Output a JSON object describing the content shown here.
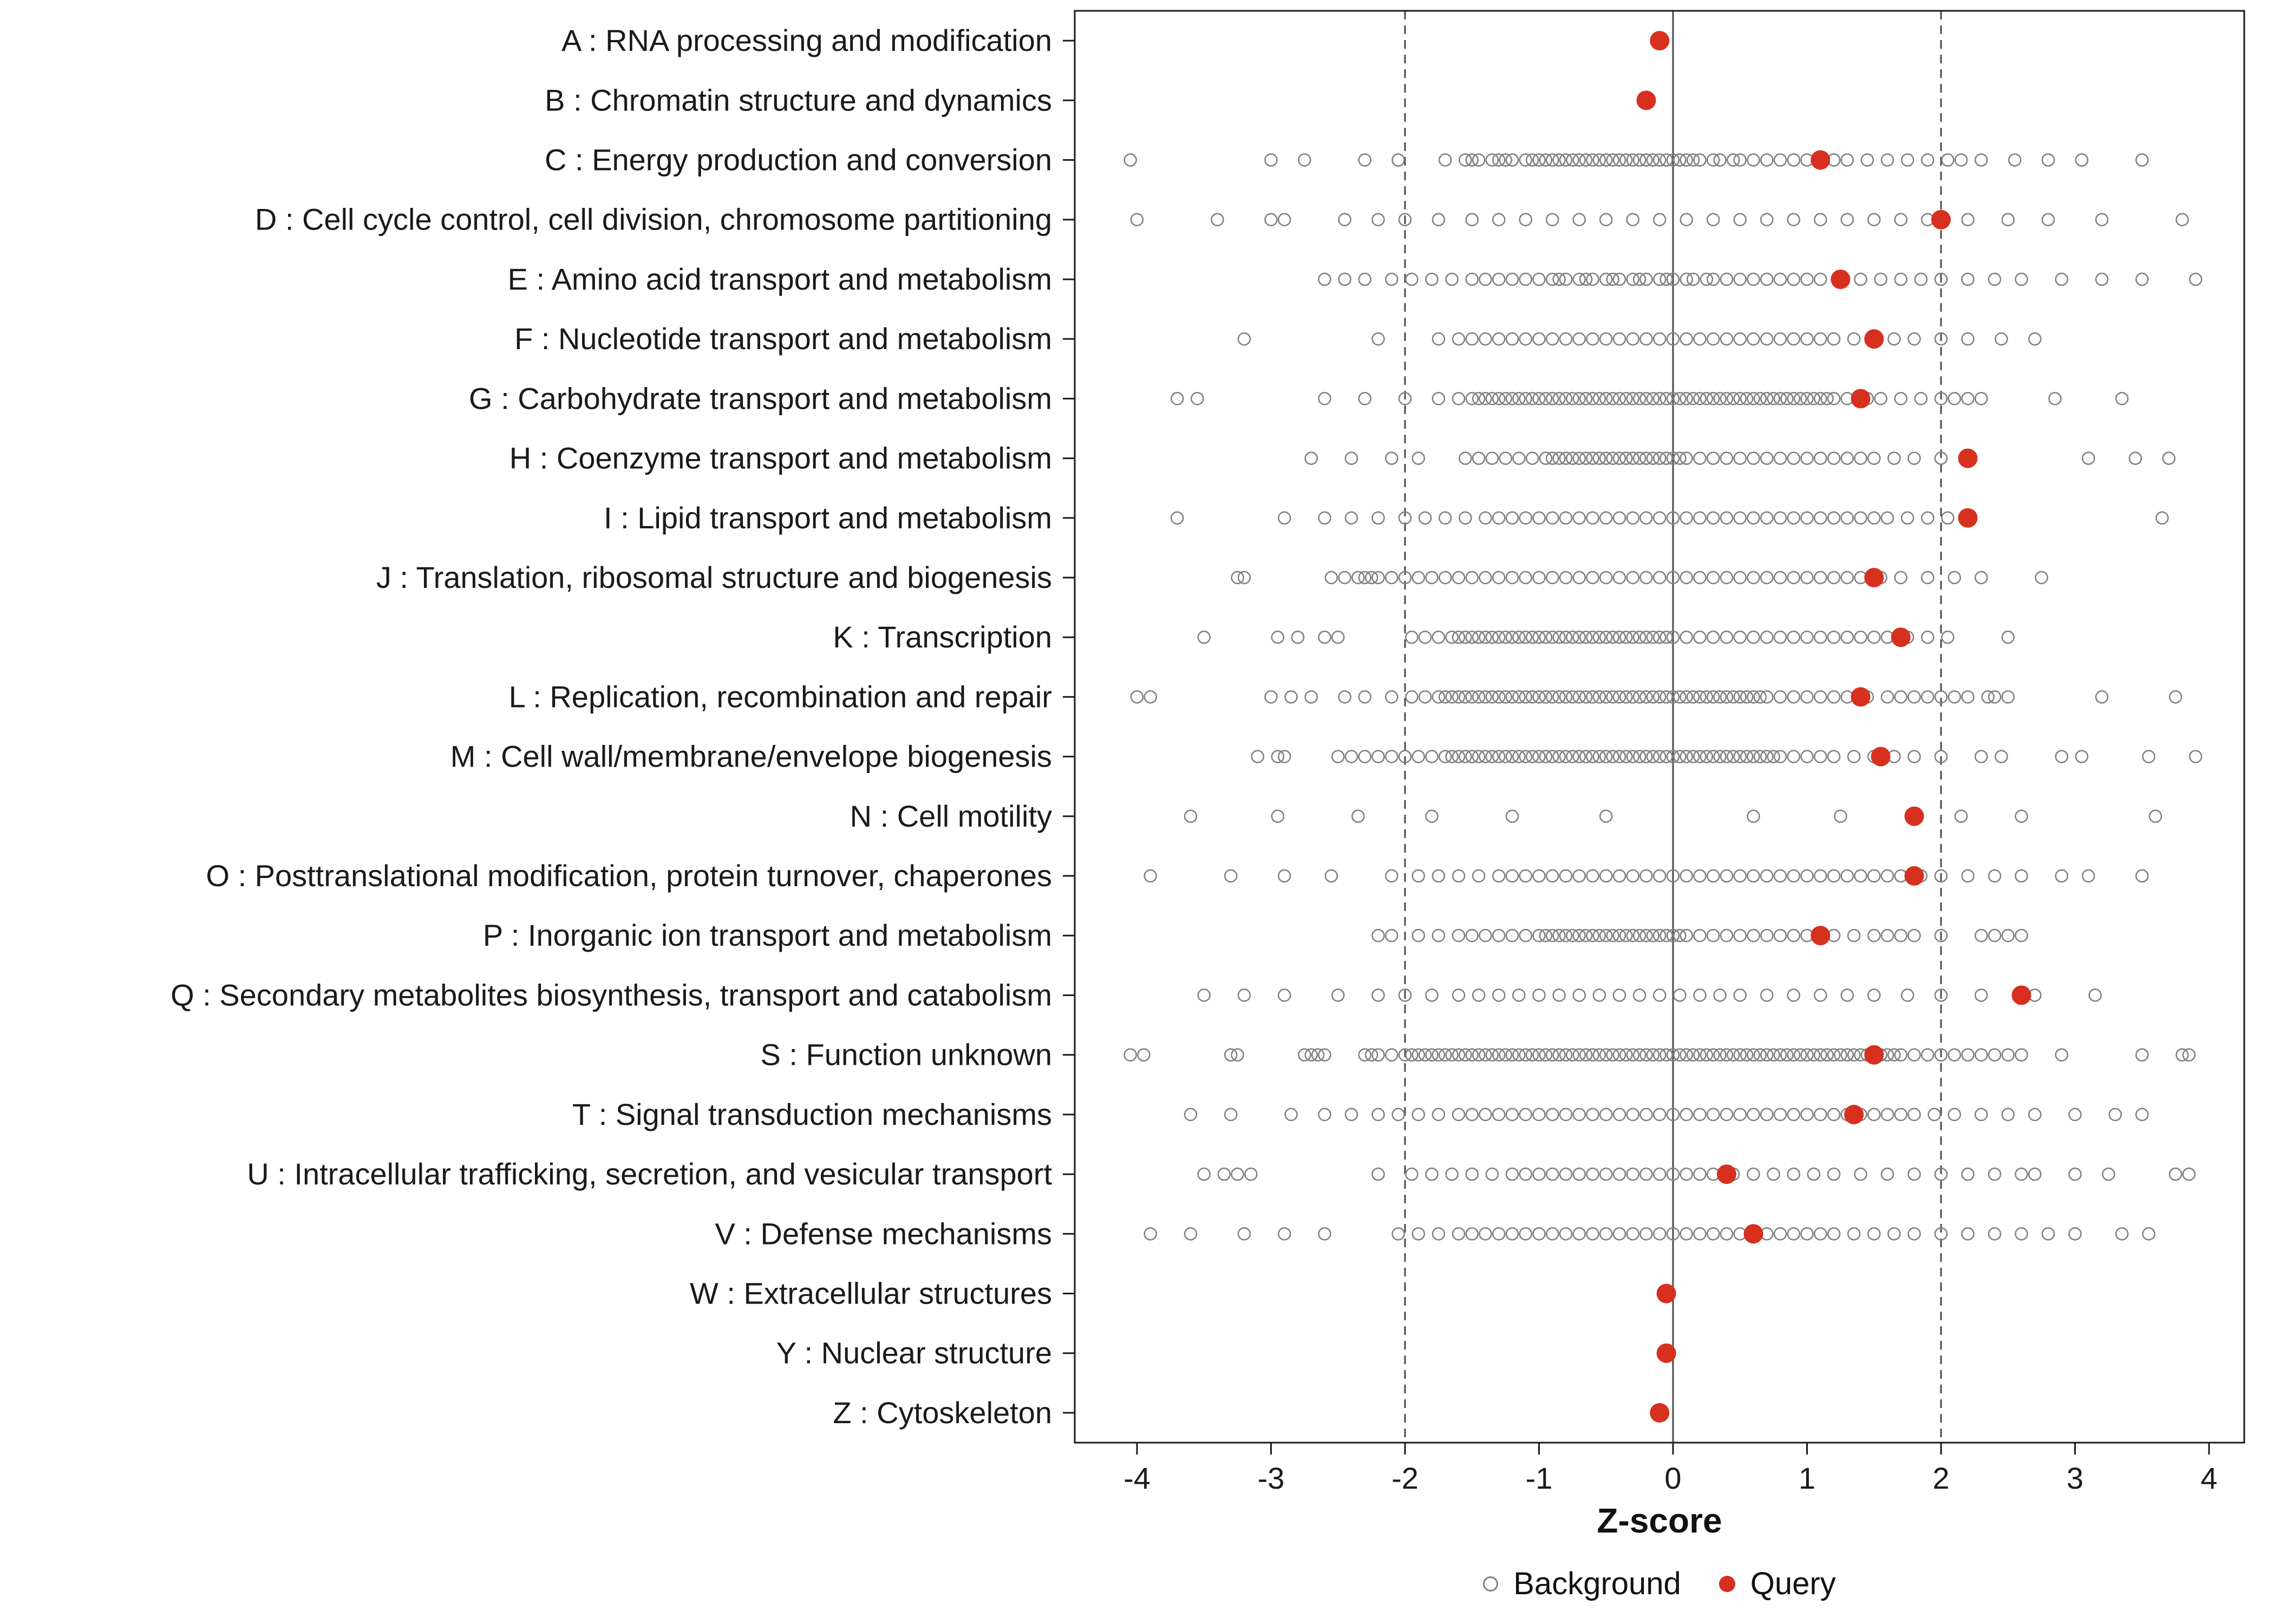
{
  "chart_data": {
    "type": "scatter",
    "title": "",
    "xlabel": "Z-score",
    "ylabel": "",
    "x_ticks": [
      -4,
      -3,
      -2,
      -1,
      0,
      1,
      2,
      3,
      4
    ],
    "xlim": [
      -4.45,
      4.25
    ],
    "grid": false,
    "legend": [
      "Background",
      "Query"
    ],
    "legend_position": "bottom",
    "reference_lines": {
      "solid": [
        0
      ],
      "dashed": [
        -2,
        2
      ]
    },
    "colors": {
      "background_stroke": "#828282",
      "query_fill": "#D7301F",
      "reference_line": "#4a4a4a",
      "panel_border": "#1a1a1a",
      "text": "#1a1a1a"
    },
    "categories": [
      {
        "label": "A : RNA processing and modification",
        "query": -0.1,
        "background": []
      },
      {
        "label": "B : Chromatin structure and dynamics",
        "query": -0.2,
        "background": []
      },
      {
        "label": "C : Energy production and conversion",
        "query": 1.1,
        "background": [
          -4.05,
          -3.0,
          -2.75,
          -2.3,
          -2.05,
          -1.7,
          -1.55,
          -1.5,
          -1.45,
          -1.35,
          -1.3,
          -1.25,
          -1.2,
          -1.1,
          -1.05,
          -1.0,
          -0.95,
          -0.9,
          -0.85,
          -0.8,
          -0.75,
          -0.7,
          -0.65,
          -0.6,
          -0.55,
          -0.5,
          -0.45,
          -0.4,
          -0.35,
          -0.3,
          -0.25,
          -0.2,
          -0.15,
          -0.1,
          -0.05,
          0.0,
          0.05,
          0.1,
          0.15,
          0.2,
          0.3,
          0.35,
          0.45,
          0.5,
          0.6,
          0.7,
          0.8,
          0.9,
          1.0,
          1.1,
          1.2,
          1.3,
          1.45,
          1.6,
          1.75,
          1.9,
          2.05,
          2.15,
          2.3,
          2.55,
          2.8,
          3.05,
          3.5
        ]
      },
      {
        "label": "D : Cell cycle control, cell division, chromosome partitioning",
        "query": 2.0,
        "background": [
          -4.0,
          -3.4,
          -3.0,
          -2.9,
          -2.45,
          -2.2,
          -2.0,
          -1.75,
          -1.5,
          -1.3,
          -1.1,
          -0.9,
          -0.7,
          -0.5,
          -0.3,
          -0.1,
          0.1,
          0.3,
          0.5,
          0.7,
          0.9,
          1.1,
          1.3,
          1.5,
          1.7,
          1.9,
          2.2,
          2.5,
          2.8,
          3.2,
          3.8
        ]
      },
      {
        "label": "E : Amino acid transport and metabolism",
        "query": 1.25,
        "background": [
          -2.6,
          -2.45,
          -2.3,
          -2.1,
          -1.95,
          -1.8,
          -1.65,
          -1.5,
          -1.4,
          -1.3,
          -1.2,
          -1.1,
          -1.0,
          -0.9,
          -0.85,
          -0.8,
          -0.7,
          -0.65,
          -0.6,
          -0.5,
          -0.45,
          -0.4,
          -0.3,
          -0.25,
          -0.2,
          -0.1,
          -0.05,
          0.0,
          0.1,
          0.15,
          0.25,
          0.3,
          0.4,
          0.5,
          0.6,
          0.7,
          0.8,
          0.9,
          1.0,
          1.1,
          1.25,
          1.4,
          1.55,
          1.7,
          1.85,
          2.0,
          2.2,
          2.4,
          2.6,
          2.9,
          3.2,
          3.5,
          3.9
        ]
      },
      {
        "label": "F : Nucleotide transport and metabolism",
        "query": 1.5,
        "background": [
          -3.2,
          -2.2,
          -1.75,
          -1.6,
          -1.5,
          -1.4,
          -1.3,
          -1.2,
          -1.1,
          -1.0,
          -0.9,
          -0.8,
          -0.7,
          -0.6,
          -0.5,
          -0.4,
          -0.3,
          -0.2,
          -0.1,
          0.0,
          0.1,
          0.2,
          0.3,
          0.4,
          0.5,
          0.6,
          0.7,
          0.8,
          0.9,
          1.0,
          1.1,
          1.2,
          1.35,
          1.5,
          1.65,
          1.8,
          2.0,
          2.2,
          2.45,
          2.7
        ]
      },
      {
        "label": "G : Carbohydrate transport and metabolism",
        "query": 1.4,
        "background": [
          -3.7,
          -3.55,
          -2.6,
          -2.3,
          -2.0,
          -1.75,
          -1.6,
          -1.5,
          -1.45,
          -1.4,
          -1.35,
          -1.3,
          -1.25,
          -1.2,
          -1.15,
          -1.1,
          -1.05,
          -1.0,
          -0.95,
          -0.9,
          -0.85,
          -0.8,
          -0.75,
          -0.7,
          -0.65,
          -0.6,
          -0.55,
          -0.5,
          -0.45,
          -0.4,
          -0.35,
          -0.3,
          -0.25,
          -0.2,
          -0.15,
          -0.1,
          -0.05,
          0.0,
          0.05,
          0.1,
          0.15,
          0.2,
          0.25,
          0.3,
          0.35,
          0.4,
          0.45,
          0.5,
          0.55,
          0.6,
          0.65,
          0.7,
          0.75,
          0.8,
          0.85,
          0.9,
          0.95,
          1.0,
          1.05,
          1.1,
          1.15,
          1.2,
          1.3,
          1.45,
          1.55,
          1.7,
          1.85,
          2.0,
          2.1,
          2.2,
          2.3,
          2.85,
          3.35
        ]
      },
      {
        "label": "H : Coenzyme transport and metabolism",
        "query": 2.2,
        "background": [
          -2.7,
          -2.4,
          -2.1,
          -1.9,
          -1.55,
          -1.45,
          -1.35,
          -1.25,
          -1.15,
          -1.05,
          -0.95,
          -0.9,
          -0.85,
          -0.8,
          -0.75,
          -0.7,
          -0.65,
          -0.6,
          -0.55,
          -0.5,
          -0.45,
          -0.4,
          -0.35,
          -0.3,
          -0.25,
          -0.2,
          -0.15,
          -0.1,
          -0.05,
          0.0,
          0.05,
          0.1,
          0.2,
          0.3,
          0.4,
          0.5,
          0.6,
          0.7,
          0.8,
          0.9,
          1.0,
          1.1,
          1.2,
          1.3,
          1.4,
          1.5,
          1.65,
          1.8,
          2.0,
          3.1,
          3.45,
          3.7
        ]
      },
      {
        "label": "I : Lipid transport and metabolism",
        "query": 2.2,
        "background": [
          -3.7,
          -2.9,
          -2.6,
          -2.4,
          -2.2,
          -2.0,
          -1.85,
          -1.7,
          -1.55,
          -1.4,
          -1.3,
          -1.2,
          -1.1,
          -1.0,
          -0.9,
          -0.8,
          -0.7,
          -0.6,
          -0.5,
          -0.4,
          -0.3,
          -0.2,
          -0.1,
          0.0,
          0.1,
          0.2,
          0.3,
          0.4,
          0.5,
          0.6,
          0.7,
          0.8,
          0.9,
          1.0,
          1.1,
          1.2,
          1.3,
          1.4,
          1.5,
          1.6,
          1.75,
          1.9,
          2.05,
          3.65
        ]
      },
      {
        "label": "J : Translation, ribosomal structure and biogenesis",
        "query": 1.5,
        "background": [
          -3.25,
          -3.2,
          -2.55,
          -2.45,
          -2.35,
          -2.3,
          -2.25,
          -2.2,
          -2.1,
          -2.0,
          -1.9,
          -1.8,
          -1.7,
          -1.6,
          -1.5,
          -1.4,
          -1.3,
          -1.2,
          -1.1,
          -1.0,
          -0.9,
          -0.8,
          -0.7,
          -0.6,
          -0.5,
          -0.4,
          -0.3,
          -0.2,
          -0.1,
          0.0,
          0.1,
          0.2,
          0.3,
          0.4,
          0.5,
          0.6,
          0.7,
          0.8,
          0.9,
          1.0,
          1.1,
          1.2,
          1.3,
          1.4,
          1.55,
          1.7,
          1.9,
          2.1,
          2.3,
          2.75
        ]
      },
      {
        "label": "K : Transcription",
        "query": 1.7,
        "background": [
          -3.5,
          -2.95,
          -2.8,
          -2.6,
          -2.5,
          -1.95,
          -1.85,
          -1.75,
          -1.65,
          -1.6,
          -1.55,
          -1.5,
          -1.45,
          -1.4,
          -1.35,
          -1.3,
          -1.25,
          -1.2,
          -1.15,
          -1.1,
          -1.05,
          -1.0,
          -0.95,
          -0.9,
          -0.85,
          -0.8,
          -0.75,
          -0.7,
          -0.65,
          -0.6,
          -0.55,
          -0.5,
          -0.45,
          -0.4,
          -0.35,
          -0.3,
          -0.25,
          -0.2,
          -0.15,
          -0.1,
          -0.05,
          0.0,
          0.1,
          0.2,
          0.3,
          0.4,
          0.5,
          0.6,
          0.7,
          0.8,
          0.9,
          1.0,
          1.1,
          1.2,
          1.3,
          1.4,
          1.5,
          1.6,
          1.75,
          1.9,
          2.05,
          2.5
        ]
      },
      {
        "label": "L : Replication, recombination and repair",
        "query": 1.4,
        "background": [
          -4.0,
          -3.9,
          -3.0,
          -2.85,
          -2.7,
          -2.45,
          -2.3,
          -2.1,
          -1.95,
          -1.85,
          -1.75,
          -1.7,
          -1.65,
          -1.6,
          -1.55,
          -1.5,
          -1.45,
          -1.4,
          -1.35,
          -1.3,
          -1.25,
          -1.2,
          -1.15,
          -1.1,
          -1.05,
          -1.0,
          -0.95,
          -0.9,
          -0.85,
          -0.8,
          -0.75,
          -0.7,
          -0.65,
          -0.6,
          -0.55,
          -0.5,
          -0.45,
          -0.4,
          -0.35,
          -0.3,
          -0.25,
          -0.2,
          -0.15,
          -0.1,
          -0.05,
          0.0,
          0.05,
          0.1,
          0.15,
          0.2,
          0.25,
          0.3,
          0.35,
          0.4,
          0.45,
          0.5,
          0.55,
          0.6,
          0.65,
          0.7,
          0.8,
          0.9,
          1.0,
          1.1,
          1.2,
          1.3,
          1.45,
          1.6,
          1.7,
          1.8,
          1.9,
          2.0,
          2.1,
          2.2,
          2.35,
          2.4,
          2.5,
          3.2,
          3.75
        ]
      },
      {
        "label": "M : Cell wall/membrane/envelope biogenesis",
        "query": 1.55,
        "background": [
          -3.1,
          -2.95,
          -2.9,
          -2.5,
          -2.4,
          -2.3,
          -2.2,
          -2.1,
          -2.0,
          -1.9,
          -1.8,
          -1.7,
          -1.65,
          -1.6,
          -1.55,
          -1.5,
          -1.45,
          -1.4,
          -1.35,
          -1.3,
          -1.25,
          -1.2,
          -1.15,
          -1.1,
          -1.05,
          -1.0,
          -0.95,
          -0.9,
          -0.85,
          -0.8,
          -0.75,
          -0.7,
          -0.65,
          -0.6,
          -0.55,
          -0.5,
          -0.45,
          -0.4,
          -0.35,
          -0.3,
          -0.25,
          -0.2,
          -0.15,
          -0.1,
          -0.05,
          0.0,
          0.05,
          0.1,
          0.15,
          0.2,
          0.25,
          0.3,
          0.35,
          0.4,
          0.45,
          0.5,
          0.55,
          0.6,
          0.65,
          0.7,
          0.75,
          0.8,
          0.9,
          1.0,
          1.1,
          1.2,
          1.35,
          1.5,
          1.65,
          1.8,
          2.0,
          2.3,
          2.45,
          2.9,
          3.05,
          3.55,
          3.9
        ]
      },
      {
        "label": "N : Cell motility",
        "query": 1.8,
        "background": [
          -3.6,
          -2.95,
          -2.35,
          -1.8,
          -1.2,
          -0.5,
          0.6,
          1.25,
          2.15,
          2.6,
          3.6
        ]
      },
      {
        "label": "O : Posttranslational modification, protein turnover, chaperones",
        "query": 1.8,
        "background": [
          -3.9,
          -3.3,
          -2.9,
          -2.55,
          -2.1,
          -1.9,
          -1.75,
          -1.6,
          -1.45,
          -1.3,
          -1.2,
          -1.1,
          -1.0,
          -0.9,
          -0.8,
          -0.7,
          -0.6,
          -0.5,
          -0.4,
          -0.3,
          -0.2,
          -0.1,
          0.0,
          0.1,
          0.2,
          0.3,
          0.4,
          0.5,
          0.6,
          0.7,
          0.8,
          0.9,
          1.0,
          1.1,
          1.2,
          1.3,
          1.4,
          1.5,
          1.6,
          1.7,
          1.85,
          2.0,
          2.2,
          2.4,
          2.6,
          2.9,
          3.1,
          3.5
        ]
      },
      {
        "label": "P : Inorganic ion transport and metabolism",
        "query": 1.1,
        "background": [
          -2.2,
          -2.1,
          -1.9,
          -1.75,
          -1.6,
          -1.5,
          -1.4,
          -1.3,
          -1.2,
          -1.1,
          -1.0,
          -0.95,
          -0.9,
          -0.85,
          -0.8,
          -0.75,
          -0.7,
          -0.65,
          -0.6,
          -0.55,
          -0.5,
          -0.45,
          -0.4,
          -0.35,
          -0.3,
          -0.25,
          -0.2,
          -0.15,
          -0.1,
          -0.05,
          0.0,
          0.05,
          0.1,
          0.2,
          0.3,
          0.4,
          0.5,
          0.6,
          0.7,
          0.8,
          0.9,
          1.0,
          1.2,
          1.35,
          1.5,
          1.6,
          1.7,
          1.8,
          2.0,
          2.3,
          2.4,
          2.5,
          2.6
        ]
      },
      {
        "label": "Q : Secondary metabolites biosynthesis, transport and catabolism",
        "query": 2.6,
        "background": [
          -3.5,
          -3.2,
          -2.9,
          -2.5,
          -2.2,
          -2.0,
          -1.8,
          -1.6,
          -1.45,
          -1.3,
          -1.15,
          -1.0,
          -0.85,
          -0.7,
          -0.55,
          -0.4,
          -0.25,
          -0.1,
          0.05,
          0.2,
          0.35,
          0.5,
          0.7,
          0.9,
          1.1,
          1.3,
          1.5,
          1.75,
          2.0,
          2.3,
          2.7,
          3.15
        ]
      },
      {
        "label": "S : Function unknown",
        "query": 1.5,
        "background": [
          -4.05,
          -3.95,
          -3.3,
          -3.25,
          -2.75,
          -2.7,
          -2.65,
          -2.6,
          -2.3,
          -2.25,
          -2.2,
          -2.1,
          -2.0,
          -1.95,
          -1.9,
          -1.85,
          -1.8,
          -1.75,
          -1.7,
          -1.65,
          -1.6,
          -1.55,
          -1.5,
          -1.45,
          -1.4,
          -1.35,
          -1.3,
          -1.25,
          -1.2,
          -1.15,
          -1.1,
          -1.05,
          -1.0,
          -0.95,
          -0.9,
          -0.85,
          -0.8,
          -0.75,
          -0.7,
          -0.65,
          -0.6,
          -0.55,
          -0.5,
          -0.45,
          -0.4,
          -0.35,
          -0.3,
          -0.25,
          -0.2,
          -0.15,
          -0.1,
          -0.05,
          0.0,
          0.05,
          0.1,
          0.15,
          0.2,
          0.25,
          0.3,
          0.35,
          0.4,
          0.45,
          0.5,
          0.55,
          0.6,
          0.65,
          0.7,
          0.75,
          0.8,
          0.85,
          0.9,
          0.95,
          1.0,
          1.05,
          1.1,
          1.15,
          1.2,
          1.25,
          1.3,
          1.35,
          1.4,
          1.45,
          1.5,
          1.55,
          1.6,
          1.65,
          1.7,
          1.8,
          1.9,
          2.0,
          2.1,
          2.2,
          2.3,
          2.4,
          2.5,
          2.6,
          2.9,
          3.5,
          3.8,
          3.85
        ]
      },
      {
        "label": "T : Signal transduction mechanisms",
        "query": 1.35,
        "background": [
          -3.6,
          -3.3,
          -2.85,
          -2.6,
          -2.4,
          -2.2,
          -2.05,
          -1.9,
          -1.75,
          -1.6,
          -1.5,
          -1.4,
          -1.3,
          -1.2,
          -1.1,
          -1.0,
          -0.9,
          -0.8,
          -0.7,
          -0.6,
          -0.5,
          -0.4,
          -0.3,
          -0.2,
          -0.1,
          0.0,
          0.1,
          0.2,
          0.3,
          0.4,
          0.5,
          0.6,
          0.7,
          0.8,
          0.9,
          1.0,
          1.1,
          1.2,
          1.3,
          1.4,
          1.5,
          1.6,
          1.7,
          1.8,
          1.95,
          2.1,
          2.3,
          2.5,
          2.7,
          3.0,
          3.3,
          3.5
        ]
      },
      {
        "label": "U : Intracellular trafficking, secretion, and vesicular transport",
        "query": 0.4,
        "background": [
          -3.5,
          -3.35,
          -3.25,
          -3.15,
          -2.2,
          -1.95,
          -1.8,
          -1.65,
          -1.5,
          -1.35,
          -1.2,
          -1.1,
          -1.0,
          -0.9,
          -0.8,
          -0.7,
          -0.6,
          -0.5,
          -0.4,
          -0.3,
          -0.2,
          -0.1,
          0.0,
          0.1,
          0.2,
          0.3,
          0.45,
          0.6,
          0.75,
          0.9,
          1.05,
          1.2,
          1.4,
          1.6,
          1.8,
          2.0,
          2.2,
          2.4,
          2.6,
          2.7,
          3.0,
          3.25,
          3.75,
          3.85
        ]
      },
      {
        "label": "V : Defense mechanisms",
        "query": 0.6,
        "background": [
          -3.9,
          -3.6,
          -3.2,
          -2.9,
          -2.6,
          -2.05,
          -1.9,
          -1.75,
          -1.6,
          -1.5,
          -1.4,
          -1.3,
          -1.2,
          -1.1,
          -1.0,
          -0.9,
          -0.8,
          -0.7,
          -0.6,
          -0.5,
          -0.4,
          -0.3,
          -0.2,
          -0.1,
          0.0,
          0.1,
          0.2,
          0.3,
          0.4,
          0.5,
          0.6,
          0.7,
          0.8,
          0.9,
          1.0,
          1.1,
          1.2,
          1.35,
          1.5,
          1.65,
          1.8,
          2.0,
          2.2,
          2.4,
          2.6,
          2.8,
          3.0,
          3.35,
          3.55
        ]
      },
      {
        "label": "W : Extracellular structures",
        "query": -0.05,
        "background": []
      },
      {
        "label": "Y : Nuclear structure",
        "query": -0.05,
        "background": []
      },
      {
        "label": "Z : Cytoskeleton",
        "query": -0.1,
        "background": []
      }
    ]
  }
}
